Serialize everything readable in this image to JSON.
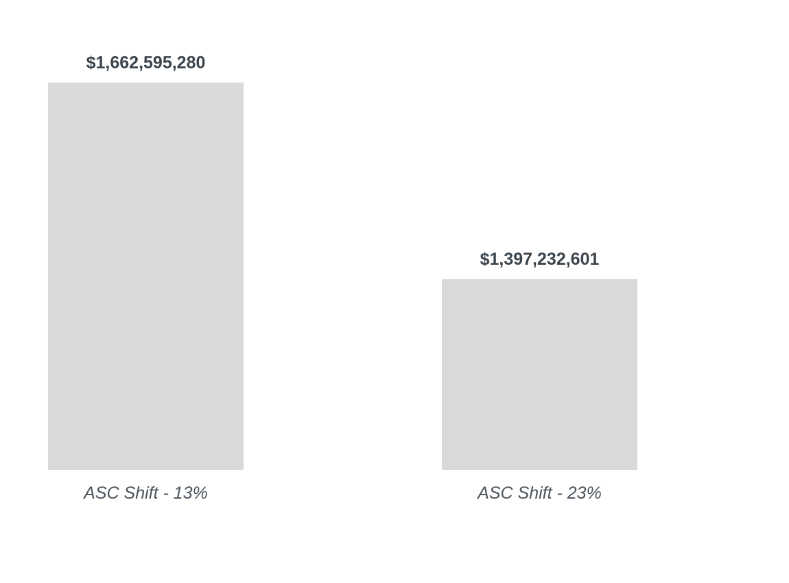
{
  "chart_data": {
    "type": "bar",
    "categories": [
      "ASC Shift - 13%",
      "ASC Shift - 23%"
    ],
    "values": [
      1662595280,
      1397232601
    ],
    "value_labels": [
      "$1,662,595,280",
      "$1,397,232,601"
    ],
    "title": "",
    "xlabel": "",
    "ylabel": "",
    "ylim": [
      1140000000,
      1700000000
    ],
    "grid": false,
    "legend": "none"
  },
  "colors": {
    "bar_fill": "#d7d9db",
    "value_text": "#3b444c",
    "category_text": "#4a535b",
    "background": "#ffffff"
  }
}
